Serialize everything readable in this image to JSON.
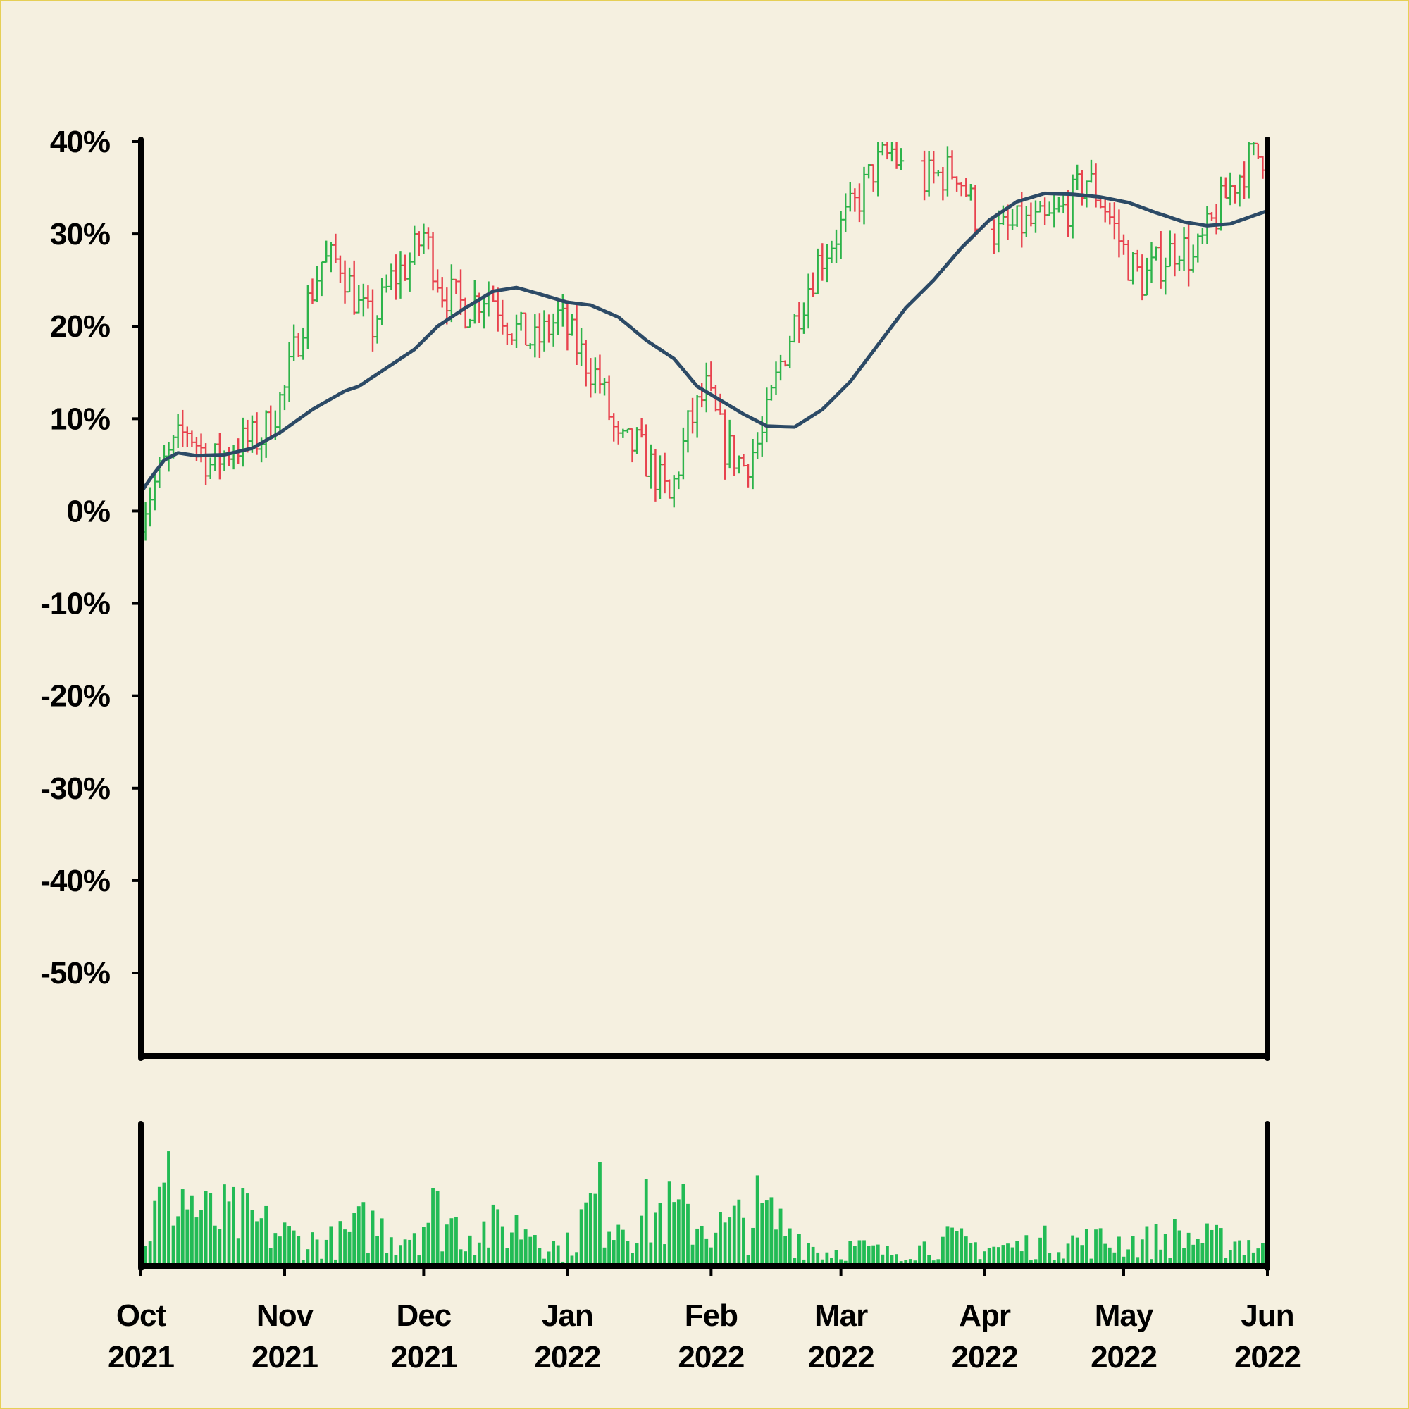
{
  "chart_data": {
    "type": "ohlc",
    "y_axis": {
      "format": "percent",
      "ylim": [
        -59,
        40
      ],
      "ticks": [
        "40%",
        "30%",
        "20%",
        "10%",
        "0%",
        "-10%",
        "-20%",
        "-30%",
        "-40%",
        "-50%"
      ],
      "tick_values": [
        40,
        30,
        20,
        10,
        0,
        -10,
        -20,
        -30,
        -40,
        -50
      ]
    },
    "x_axis": {
      "range": [
        "2021-10-01",
        "2022-06-01"
      ],
      "ticks": [
        {
          "date": "2021-10-01",
          "month": "Oct",
          "year": "2021"
        },
        {
          "date": "2021-11-01",
          "month": "Nov",
          "year": "2021"
        },
        {
          "date": "2021-12-01",
          "month": "Dec",
          "year": "2021"
        },
        {
          "date": "2022-01-01",
          "month": "Jan",
          "year": "2022"
        },
        {
          "date": "2022-02-01",
          "month": "Feb",
          "year": "2022"
        },
        {
          "date": "2022-03-01",
          "month": "Mar",
          "year": "2022"
        },
        {
          "date": "2022-04-01",
          "month": "Apr",
          "year": "2022"
        },
        {
          "date": "2022-05-01",
          "month": "May",
          "year": "2022"
        },
        {
          "date": "2022-06-01",
          "month": "Jun",
          "year": "2022"
        }
      ]
    },
    "close_path": [
      [
        "2021-10-01",
        0
      ],
      [
        "2021-10-06",
        5
      ],
      [
        "2021-10-11",
        9
      ],
      [
        "2021-10-16",
        5
      ],
      [
        "2021-10-21",
        7
      ],
      [
        "2021-10-27",
        8
      ],
      [
        "2021-11-01",
        13
      ],
      [
        "2021-11-05",
        21
      ],
      [
        "2021-11-09",
        27
      ],
      [
        "2021-11-13",
        27
      ],
      [
        "2021-11-17",
        22
      ],
      [
        "2021-11-20",
        20
      ],
      [
        "2021-11-24",
        25
      ],
      [
        "2021-11-28",
        27
      ],
      [
        "2021-12-01",
        30
      ],
      [
        "2021-12-05",
        24
      ],
      [
        "2021-12-10",
        22
      ],
      [
        "2021-12-15",
        24
      ],
      [
        "2021-12-20",
        20
      ],
      [
        "2021-12-25",
        18
      ],
      [
        "2021-12-30",
        21
      ],
      [
        "2022-01-04",
        17
      ],
      [
        "2022-01-08",
        14
      ],
      [
        "2022-01-12",
        7
      ],
      [
        "2022-01-16",
        7
      ],
      [
        "2022-01-20",
        4
      ],
      [
        "2022-01-23",
        1
      ],
      [
        "2022-01-27",
        9
      ],
      [
        "2022-01-31",
        13
      ],
      [
        "2022-02-04",
        7
      ],
      [
        "2022-02-08",
        5
      ],
      [
        "2022-02-12",
        8
      ],
      [
        "2022-02-16",
        16
      ],
      [
        "2022-02-20",
        22
      ],
      [
        "2022-02-24",
        27
      ],
      [
        "2022-02-28",
        30
      ],
      [
        "2022-03-04",
        33
      ],
      [
        "2022-03-08",
        37
      ],
      [
        "2022-03-12",
        39
      ],
      [
        "2022-03-16",
        35
      ],
      [
        "2022-03-20",
        36
      ],
      [
        "2022-03-26",
        37
      ],
      [
        "2022-03-31",
        31
      ],
      [
        "2022-04-04",
        30
      ],
      [
        "2022-04-09",
        31
      ],
      [
        "2022-04-14",
        31
      ],
      [
        "2022-04-19",
        33
      ],
      [
        "2022-04-23",
        36
      ],
      [
        "2022-04-27",
        33
      ],
      [
        "2022-05-02",
        27
      ],
      [
        "2022-05-05",
        25
      ],
      [
        "2022-05-09",
        27
      ],
      [
        "2022-05-13",
        29
      ],
      [
        "2022-05-16",
        27
      ],
      [
        "2022-05-20",
        31
      ],
      [
        "2022-05-24",
        35
      ],
      [
        "2022-05-28",
        38
      ],
      [
        "2022-06-01",
        39
      ]
    ],
    "gaps": [
      [
        "2022-03-15",
        "2022-03-18"
      ],
      [
        "2022-03-31",
        "2022-04-02"
      ]
    ],
    "moving_average": [
      [
        "2021-10-01",
        2
      ],
      [
        "2021-10-03",
        3.5
      ],
      [
        "2021-10-06",
        5.5
      ],
      [
        "2021-10-09",
        6.3
      ],
      [
        "2021-10-13",
        6
      ],
      [
        "2021-10-19",
        6.1
      ],
      [
        "2021-10-25",
        6.8
      ],
      [
        "2021-10-31",
        8.5
      ],
      [
        "2021-11-07",
        11
      ],
      [
        "2021-11-14",
        13
      ],
      [
        "2021-11-17",
        13.5
      ],
      [
        "2021-11-23",
        15.5
      ],
      [
        "2021-11-29",
        17.5
      ],
      [
        "2021-12-04",
        20
      ],
      [
        "2021-12-10",
        22
      ],
      [
        "2021-12-16",
        23.8
      ],
      [
        "2021-12-21",
        24.2
      ],
      [
        "2021-12-26",
        23.5
      ],
      [
        "2022-01-01",
        22.6
      ],
      [
        "2022-01-06",
        22.3
      ],
      [
        "2022-01-12",
        21
      ],
      [
        "2022-01-18",
        18.5
      ],
      [
        "2022-01-24",
        16.5
      ],
      [
        "2022-01-29",
        13.5
      ],
      [
        "2022-02-03",
        12
      ],
      [
        "2022-02-08",
        10.5
      ],
      [
        "2022-02-13",
        9.2
      ],
      [
        "2022-02-19",
        9.1
      ],
      [
        "2022-02-25",
        11
      ],
      [
        "2022-03-03",
        14
      ],
      [
        "2022-03-09",
        18
      ],
      [
        "2022-03-15",
        22
      ],
      [
        "2022-03-21",
        25
      ],
      [
        "2022-03-27",
        28.5
      ],
      [
        "2022-04-02",
        31.5
      ],
      [
        "2022-04-08",
        33.5
      ],
      [
        "2022-04-14",
        34.4
      ],
      [
        "2022-04-20",
        34.3
      ],
      [
        "2022-04-26",
        34
      ],
      [
        "2022-05-02",
        33.4
      ],
      [
        "2022-05-08",
        32.3
      ],
      [
        "2022-05-14",
        31.3
      ],
      [
        "2022-05-19",
        30.9
      ],
      [
        "2022-05-24",
        31.1
      ],
      [
        "2022-06-01",
        32.5
      ]
    ],
    "volume_series": [
      [
        "2021-10-01",
        0.2
      ],
      [
        "2021-10-08",
        0.7
      ],
      [
        "2021-10-15",
        0.4
      ],
      [
        "2021-10-22",
        0.4
      ],
      [
        "2021-10-29",
        0.3
      ],
      [
        "2021-11-05",
        0.2
      ],
      [
        "2021-11-12",
        0.2
      ],
      [
        "2021-11-19",
        0.35
      ],
      [
        "2021-11-26",
        0.25
      ],
      [
        "2021-12-03",
        0.45
      ],
      [
        "2021-12-10",
        0.3
      ],
      [
        "2021-12-17",
        0.3
      ],
      [
        "2021-12-24",
        0.35
      ],
      [
        "2021-12-31",
        0.1
      ],
      [
        "2022-01-07",
        0.55
      ],
      [
        "2022-01-14",
        0.4
      ],
      [
        "2022-01-21",
        0.45
      ],
      [
        "2022-01-28",
        0.4
      ],
      [
        "2022-02-04",
        0.3
      ],
      [
        "2022-02-11",
        0.45
      ],
      [
        "2022-02-18",
        0.3
      ],
      [
        "2022-02-25",
        0.1
      ],
      [
        "2022-03-04",
        0.15
      ],
      [
        "2022-03-11",
        0.1
      ],
      [
        "2022-03-18",
        0.15
      ],
      [
        "2022-03-25",
        0.2
      ],
      [
        "2022-04-01",
        0.15
      ],
      [
        "2022-04-08",
        0.15
      ],
      [
        "2022-04-15",
        0.2
      ],
      [
        "2022-04-22",
        0.2
      ],
      [
        "2022-04-29",
        0.2
      ],
      [
        "2022-05-06",
        0.2
      ],
      [
        "2022-05-13",
        0.25
      ],
      [
        "2022-05-20",
        0.2
      ],
      [
        "2022-05-27",
        0.2
      ],
      [
        "2022-06-01",
        0.15
      ]
    ],
    "volume_peak": 1.0,
    "grid": false,
    "legend": "none",
    "colors": {
      "up": "#2db34a",
      "down": "#e8424e",
      "moving_average": "#2c4a66",
      "volume": "#22bb55",
      "axes": "#000000",
      "background": "#f5f0e0"
    }
  }
}
